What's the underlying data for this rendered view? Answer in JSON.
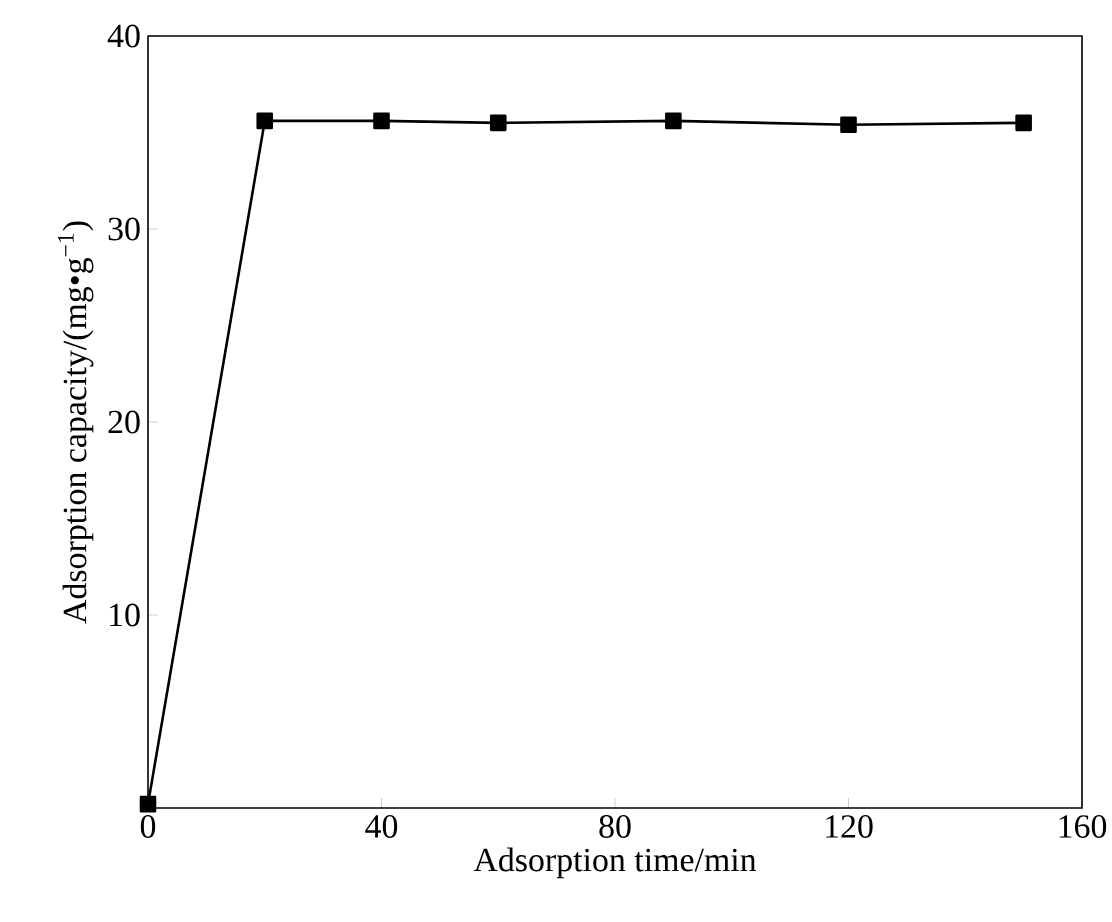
{
  "chart_data": {
    "type": "line",
    "xlabel": "Adsorption time/min",
    "ylabel": "Adsorption capacity/(mg•g$^{−1}$)",
    "x": [
      0,
      20,
      40,
      60,
      90,
      120,
      150
    ],
    "series": [
      {
        "color": "#000000",
        "values": [
          0.2,
          35.6,
          35.6,
          35.5,
          35.6,
          35.4,
          35.5
        ]
      }
    ],
    "xlim": [
      0,
      160
    ],
    "ylim": [
      0,
      40
    ],
    "xticks": [
      0,
      40,
      80,
      120,
      160
    ],
    "yticks": [
      10,
      20,
      30,
      40
    ],
    "marker": "square",
    "line_style": "solid"
  }
}
